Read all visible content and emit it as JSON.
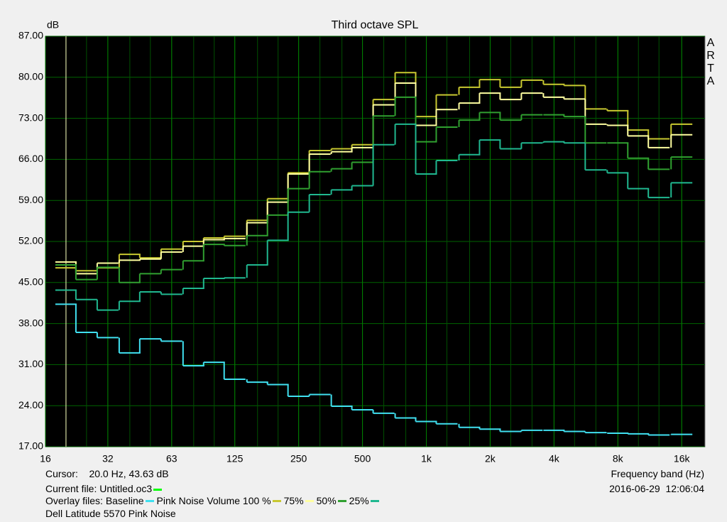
{
  "chart_data": {
    "type": "step",
    "title": "Third octave SPL",
    "y_label": "dB",
    "x_label": "Frequency band (Hz)",
    "brand": "ARTA",
    "cursor": {
      "value": 20,
      "label": "Cursor:    20.0 Hz, 43.63 dB"
    },
    "current_file_label": "Current file: Untitled.oc3",
    "current_file_color": "#00ff00",
    "timestamp": "2016-06-29  12:06:04",
    "overlay_label": "Overlay files: ",
    "caption": "Dell Latitude 5570 Pink Noise",
    "log_x": true,
    "grid": true,
    "minor_grid": true,
    "xlim": [
      16,
      20600
    ],
    "ylim": [
      17,
      87
    ],
    "xticks": [
      16,
      {
        "value": 31.5,
        "label": "32"
      },
      63,
      125,
      250,
      500,
      {
        "value": 1000,
        "label": "1k"
      },
      {
        "value": 2000,
        "label": "2k"
      },
      {
        "value": 4000,
        "label": "4k"
      },
      {
        "value": 8000,
        "label": "8k"
      },
      {
        "value": 16000,
        "label": "16k"
      }
    ],
    "yticks": [
      {
        "value": 17,
        "label": "17.00"
      },
      {
        "value": 24,
        "label": "24.00"
      },
      {
        "value": 31,
        "label": "31.00"
      },
      {
        "value": 38,
        "label": "38.00"
      },
      {
        "value": 45,
        "label": "45.00"
      },
      {
        "value": 52,
        "label": "52.00"
      },
      {
        "value": 59,
        "label": "59.00"
      },
      {
        "value": 66,
        "label": "66.00"
      },
      {
        "value": 73,
        "label": "73.00"
      },
      {
        "value": 80,
        "label": "80.00"
      },
      {
        "value": 87,
        "label": "87.00"
      }
    ],
    "x": [
      20,
      25,
      31.5,
      40,
      50,
      63,
      80,
      100,
      125,
      160,
      200,
      250,
      315,
      400,
      500,
      630,
      800,
      1000,
      1250,
      1600,
      2000,
      2500,
      3150,
      4000,
      5000,
      6300,
      8000,
      10000,
      12500,
      16000
    ],
    "series": [
      {
        "name": "Baseline",
        "color": "#40e0f0",
        "values": [
          41.3,
          36.5,
          35.6,
          33.0,
          35.4,
          35.0,
          30.8,
          31.4,
          28.5,
          28.0,
          27.6,
          25.6,
          25.9,
          23.9,
          23.3,
          22.7,
          21.9,
          21.3,
          20.9,
          20.3,
          20.0,
          19.6,
          19.8,
          19.8,
          19.6,
          19.4,
          19.3,
          19.2,
          19.0,
          19.1
        ]
      },
      {
        "name": "Pink Noise Volume 100 %",
        "color": "#c8c830",
        "values": [
          47.5,
          47.0,
          47.5,
          49.8,
          49.2,
          50.7,
          52.0,
          52.6,
          52.9,
          55.6,
          59.3,
          63.7,
          67.5,
          67.8,
          68.5,
          76.2,
          80.8,
          73.3,
          77.0,
          78.3,
          79.6,
          78.3,
          79.5,
          78.8,
          78.6,
          74.6,
          74.3,
          71.0,
          69.5,
          72.0
        ]
      },
      {
        "name": "75%",
        "color": "#ffffa0",
        "values": [
          48.5,
          46.5,
          48.3,
          48.8,
          49.0,
          50.2,
          51.2,
          52.3,
          52.5,
          55.2,
          58.7,
          63.5,
          66.9,
          67.3,
          68.0,
          75.3,
          79.0,
          71.8,
          74.5,
          75.6,
          77.3,
          76.2,
          77.3,
          76.6,
          76.3,
          72.0,
          71.8,
          70.0,
          68.0,
          70.2
        ]
      },
      {
        "name": "50%",
        "color": "#30a030",
        "values": [
          48.0,
          45.5,
          47.6,
          45.0,
          46.5,
          47.2,
          48.7,
          51.5,
          51.3,
          53.0,
          56.5,
          61.0,
          63.9,
          64.4,
          65.5,
          73.4,
          76.6,
          69.0,
          71.5,
          72.7,
          74.0,
          72.7,
          73.6,
          73.6,
          73.3,
          68.8,
          68.8,
          66.2,
          64.3,
          66.4
        ]
      },
      {
        "name": "25%",
        "color": "#20b890",
        "values": [
          43.7,
          42.1,
          40.3,
          41.8,
          43.4,
          43.0,
          44.0,
          45.7,
          45.8,
          48.0,
          52.2,
          57.0,
          60.0,
          60.8,
          61.5,
          68.5,
          72.0,
          63.5,
          65.8,
          66.8,
          69.3,
          67.8,
          68.8,
          69.0,
          68.8,
          64.2,
          63.7,
          61.0,
          59.5,
          62.0
        ]
      }
    ]
  }
}
